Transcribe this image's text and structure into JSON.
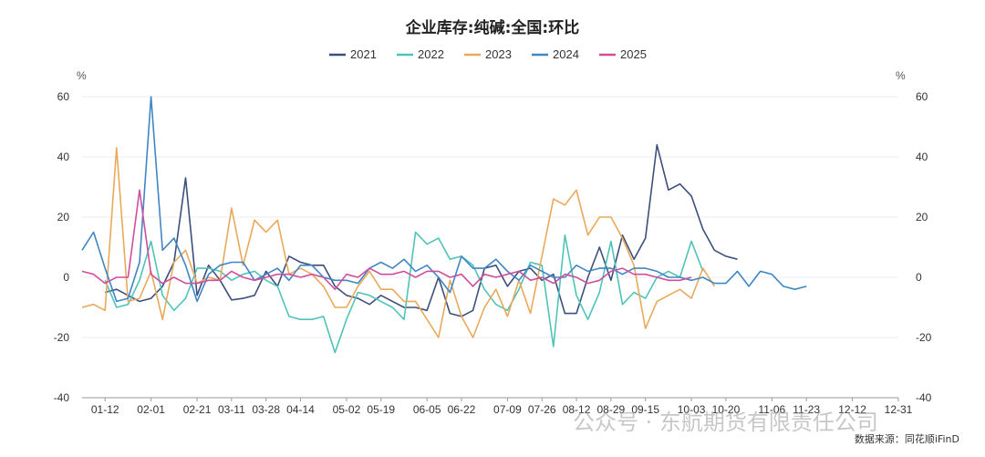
{
  "chart_data": {
    "type": "line",
    "title": "企业库存:纯碱:全国:环比",
    "y_unit_left": "%",
    "y_unit_right": "%",
    "ylim": [
      -40,
      60
    ],
    "yticks": [
      -40,
      -20,
      0,
      20,
      40,
      60
    ],
    "grid": true,
    "legend_position": "top-center",
    "x": [
      "01-01",
      "01-08",
      "01-12",
      "01-15",
      "01-22",
      "01-29",
      "02-01",
      "02-05",
      "02-12",
      "02-19",
      "02-21",
      "02-26",
      "03-04",
      "03-11",
      "03-18",
      "03-25",
      "03-28",
      "04-01",
      "04-08",
      "04-14",
      "04-15",
      "04-22",
      "04-29",
      "05-02",
      "05-06",
      "05-13",
      "05-19",
      "05-20",
      "05-27",
      "06-03",
      "06-05",
      "06-10",
      "06-17",
      "06-22",
      "06-24",
      "07-01",
      "07-08",
      "07-09",
      "07-15",
      "07-22",
      "07-26",
      "07-29",
      "08-05",
      "08-12",
      "08-19",
      "08-26",
      "08-29",
      "09-02",
      "09-09",
      "09-15",
      "09-16",
      "09-23",
      "09-30",
      "10-03",
      "10-07",
      "10-14",
      "10-20",
      "10-21",
      "10-28",
      "11-04",
      "11-06",
      "11-11",
      "11-18",
      "11-23",
      "11-25",
      "12-02",
      "12-09",
      "12-12",
      "12-16",
      "12-23",
      "12-30",
      "12-31"
    ],
    "xtick_labels": [
      "01-12",
      "02-01",
      "02-21",
      "03-11",
      "03-28",
      "04-14",
      "05-02",
      "05-19",
      "06-05",
      "06-22",
      "07-09",
      "07-26",
      "08-12",
      "08-29",
      "09-15",
      "10-03",
      "10-20",
      "11-06",
      "11-23",
      "12-12",
      "12-31"
    ],
    "series": [
      {
        "name": "2021",
        "color": "#3c4f7c",
        "values": [
          null,
          null,
          -5,
          -4,
          -6,
          -8,
          -7,
          -3,
          5,
          33,
          -6,
          4,
          -1,
          -7.5,
          -7,
          -6,
          2,
          -3,
          7,
          5,
          4,
          4,
          -3,
          -6,
          -7,
          -9,
          -6,
          -8,
          -10,
          -10,
          -11,
          0,
          -12,
          -13,
          -11,
          3,
          4,
          -3,
          2,
          3,
          -1,
          1,
          -12,
          -12,
          0,
          10,
          -1,
          14,
          6,
          13,
          44,
          29,
          31,
          27,
          16,
          9,
          7,
          6,
          null,
          null,
          null,
          null,
          null,
          null,
          null,
          null,
          null,
          null,
          null,
          null,
          null,
          null
        ]
      },
      {
        "name": "2022",
        "color": "#4ec4b8",
        "values": [
          null,
          null,
          -1,
          -10,
          -9,
          -1,
          12,
          -6,
          -11,
          -7,
          3,
          3,
          2,
          -1,
          1,
          2,
          -1,
          -3,
          -13,
          -14,
          -14,
          -13,
          -25,
          -14,
          -5,
          -6,
          -8,
          -10,
          -14,
          15,
          11,
          13,
          6,
          7,
          4,
          -4,
          -9,
          -11,
          -4,
          5,
          4,
          -23,
          14,
          -6,
          -14,
          -5,
          12,
          -9,
          -5,
          -7,
          0,
          2,
          0,
          12,
          2,
          null,
          null,
          null,
          null,
          null,
          null,
          null,
          null,
          null,
          null,
          null,
          null,
          null,
          null,
          null,
          null,
          null
        ]
      },
      {
        "name": "2023",
        "color": "#e8a95a",
        "values": [
          -10,
          -9,
          -11,
          43,
          -8,
          -7,
          2,
          -14,
          5,
          9,
          -2,
          0,
          -1,
          23,
          4,
          19,
          15,
          19,
          1,
          3,
          1,
          -3,
          -10,
          -10,
          -3,
          2,
          -4,
          -4,
          -8,
          -8,
          -14,
          -20,
          -1,
          -13,
          -20,
          -10,
          -4,
          -13,
          -1,
          -12,
          7,
          26,
          24,
          29,
          14,
          20,
          20,
          13,
          4,
          -17,
          -8,
          -6,
          -4,
          -7,
          3,
          -3,
          null,
          null,
          null,
          null,
          null,
          null,
          null,
          null,
          null,
          null,
          null,
          null,
          null,
          null,
          null,
          null
        ]
      },
      {
        "name": "2024",
        "color": "#3f86c4",
        "values": [
          9,
          15,
          3,
          -8,
          -7,
          5,
          60,
          9,
          13,
          4,
          -8,
          1,
          4,
          5,
          5,
          -1,
          1,
          3,
          -1,
          4,
          4,
          0,
          -1,
          -1,
          -2,
          3,
          5,
          3,
          6,
          2,
          4,
          0,
          -5,
          7,
          3,
          3,
          6,
          2,
          -1,
          4,
          2,
          0,
          0,
          4,
          2,
          3,
          3,
          1,
          3,
          3,
          2,
          0,
          0,
          -1,
          0,
          -2,
          -2,
          2,
          -3,
          2,
          1,
          -3,
          -4,
          -3,
          null,
          null,
          null,
          null,
          null,
          null,
          null,
          null
        ]
      },
      {
        "name": "2025",
        "color": "#cf4d9e",
        "values": [
          2,
          1,
          -2,
          0,
          0,
          29,
          1,
          -2,
          0,
          -2,
          -2,
          -1,
          -1,
          2,
          0,
          -1,
          0,
          1,
          1,
          0,
          1,
          0,
          -4,
          1,
          0,
          3,
          1,
          1,
          2,
          0,
          2,
          2,
          0,
          1,
          -3,
          1,
          0,
          1,
          2,
          -1,
          0,
          -2,
          1,
          0,
          -2,
          -1,
          2,
          3,
          1,
          1,
          0,
          -1,
          -1,
          0,
          null,
          null,
          null,
          null,
          null,
          null,
          null,
          null,
          null,
          null,
          null,
          null,
          null,
          null,
          null,
          null,
          null,
          null
        ]
      }
    ]
  },
  "watermark": "公众号 · 东航期货有限责任公司",
  "source": "数据来源：同花顺iFinD"
}
